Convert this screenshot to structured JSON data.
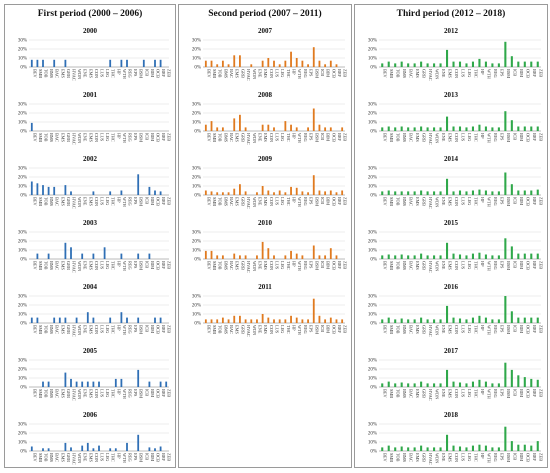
{
  "labels": [
    "BEV",
    "SMB",
    "TOB",
    "BMS",
    "BAC",
    "EMS",
    "GRB",
    "HVAC",
    "WDN",
    "ENE",
    "EMS",
    "CON",
    "LUS",
    "LEG",
    "THC",
    "HP",
    "WTH",
    "REG",
    "EPS",
    "BSM",
    "ICB",
    "BIM",
    "OCB",
    "BRF",
    "ZEB"
  ],
  "colors": {
    "first": "#2f6fb5",
    "second": "#e07a1f",
    "third": "#2fa84a"
  },
  "periods": [
    {
      "title": "First period (2000 – 2006)",
      "color_key": "first"
    },
    {
      "title": "Second period (2007 – 2011)",
      "color_key": "second"
    },
    {
      "title": "Third period (2012 – 2018)",
      "color_key": "third"
    }
  ],
  "chart_data": [
    {
      "type": "bar",
      "title": "2000",
      "period": 1,
      "ylim": [
        0,
        30
      ],
      "yticks": [
        "30%",
        "20%",
        "10%",
        "0%"
      ],
      "values": [
        8,
        8,
        8,
        0,
        8,
        0,
        8,
        0,
        0,
        0,
        0,
        0,
        0,
        0,
        8,
        0,
        8,
        8,
        0,
        0,
        8,
        0,
        8,
        8,
        0
      ]
    },
    {
      "type": "bar",
      "title": "2001",
      "period": 1,
      "ylim": [
        0,
        30
      ],
      "yticks": [
        "30%",
        "20%",
        "10%",
        "0%"
      ],
      "values": [
        9,
        0,
        0,
        0,
        0,
        0,
        0,
        0,
        0,
        0,
        0,
        0,
        0,
        0,
        0,
        0,
        0,
        0,
        0,
        0,
        0,
        0,
        0,
        0,
        0
      ]
    },
    {
      "type": "bar",
      "title": "2002",
      "period": 1,
      "ylim": [
        0,
        30
      ],
      "yticks": [
        "30%",
        "20%",
        "10%",
        "0%"
      ],
      "values": [
        15,
        13,
        11,
        9,
        9,
        0,
        11,
        4,
        0,
        0,
        0,
        4,
        0,
        0,
        4,
        0,
        5,
        0,
        0,
        23,
        0,
        9,
        5,
        4,
        0
      ]
    },
    {
      "type": "bar",
      "title": "2003",
      "period": 1,
      "ylim": [
        0,
        30
      ],
      "yticks": [
        "30%",
        "20%",
        "10%",
        "0%"
      ],
      "values": [
        0,
        6,
        0,
        6,
        0,
        0,
        18,
        13,
        0,
        6,
        0,
        6,
        0,
        13,
        0,
        0,
        6,
        0,
        0,
        6,
        0,
        6,
        0,
        0,
        0
      ]
    },
    {
      "type": "bar",
      "title": "2004",
      "period": 1,
      "ylim": [
        0,
        30
      ],
      "yticks": [
        "30%",
        "20%",
        "10%",
        "0%"
      ],
      "values": [
        6,
        6,
        0,
        0,
        6,
        6,
        6,
        0,
        6,
        0,
        12,
        6,
        0,
        0,
        6,
        0,
        12,
        6,
        0,
        6,
        0,
        0,
        6,
        6,
        0
      ]
    },
    {
      "type": "bar",
      "title": "2005",
      "period": 1,
      "ylim": [
        0,
        30
      ],
      "yticks": [
        "30%",
        "20%",
        "10%",
        "0%"
      ],
      "values": [
        0,
        0,
        6,
        6,
        0,
        0,
        16,
        9,
        6,
        6,
        6,
        6,
        6,
        0,
        0,
        9,
        9,
        0,
        0,
        19,
        0,
        6,
        0,
        6,
        6
      ]
    },
    {
      "type": "bar",
      "title": "2006",
      "period": 1,
      "ylim": [
        0,
        30
      ],
      "yticks": [
        "30%",
        "20%",
        "10%",
        "0%"
      ],
      "values": [
        5,
        0,
        3,
        3,
        0,
        0,
        9,
        4,
        0,
        6,
        9,
        3,
        6,
        0,
        3,
        3,
        0,
        9,
        0,
        18,
        0,
        4,
        3,
        5,
        0
      ]
    },
    {
      "type": "bar",
      "title": "2007",
      "period": 2,
      "ylim": [
        0,
        30
      ],
      "yticks": [
        "30%",
        "20%",
        "10%",
        "0%"
      ],
      "values": [
        7,
        7,
        3,
        7,
        3,
        13,
        13,
        0,
        3,
        0,
        7,
        10,
        7,
        3,
        7,
        17,
        10,
        7,
        3,
        22,
        7,
        3,
        7,
        3,
        0
      ]
    },
    {
      "type": "bar",
      "title": "2008",
      "period": 2,
      "ylim": [
        0,
        30
      ],
      "yticks": [
        "30%",
        "20%",
        "10%",
        "0%"
      ],
      "values": [
        7,
        11,
        4,
        4,
        0,
        14,
        18,
        4,
        0,
        0,
        7,
        7,
        4,
        0,
        11,
        7,
        4,
        0,
        4,
        25,
        7,
        4,
        4,
        0,
        4
      ]
    },
    {
      "type": "bar",
      "title": "2009",
      "period": 2,
      "ylim": [
        0,
        30
      ],
      "yticks": [
        "30%",
        "20%",
        "10%",
        "0%"
      ],
      "values": [
        5,
        4,
        3,
        3,
        3,
        7,
        12,
        4,
        0,
        3,
        10,
        5,
        3,
        5,
        3,
        9,
        8,
        4,
        3,
        22,
        5,
        4,
        5,
        3,
        5
      ]
    },
    {
      "type": "bar",
      "title": "2010",
      "period": 2,
      "ylim": [
        0,
        30
      ],
      "yticks": [
        "30%",
        "20%",
        "10%",
        "0%"
      ],
      "values": [
        9,
        9,
        4,
        4,
        0,
        6,
        4,
        4,
        0,
        4,
        19,
        12,
        4,
        0,
        4,
        9,
        6,
        4,
        0,
        15,
        4,
        4,
        12,
        4,
        0
      ]
    },
    {
      "type": "bar",
      "title": "2011",
      "period": 2,
      "ylim": [
        0,
        30
      ],
      "yticks": [
        "30%",
        "20%",
        "10%",
        "0%"
      ],
      "values": [
        4,
        4,
        4,
        6,
        4,
        8,
        8,
        4,
        4,
        4,
        10,
        6,
        4,
        4,
        4,
        8,
        6,
        4,
        4,
        27,
        8,
        4,
        6,
        4,
        4
      ]
    },
    {
      "type": "bar",
      "title": "2012",
      "period": 3,
      "ylim": [
        0,
        30
      ],
      "yticks": [
        "30%",
        "20%",
        "10%",
        "0%"
      ],
      "values": [
        4,
        6,
        4,
        6,
        4,
        4,
        6,
        4,
        4,
        4,
        19,
        6,
        6,
        4,
        6,
        9,
        6,
        4,
        4,
        28,
        12,
        6,
        6,
        6,
        6
      ]
    },
    {
      "type": "bar",
      "title": "2013",
      "period": 3,
      "ylim": [
        0,
        30
      ],
      "yticks": [
        "30%",
        "20%",
        "10%",
        "0%"
      ],
      "values": [
        4,
        5,
        4,
        5,
        4,
        4,
        5,
        4,
        4,
        4,
        16,
        5,
        5,
        4,
        5,
        7,
        5,
        4,
        4,
        22,
        12,
        5,
        5,
        5,
        5
      ]
    },
    {
      "type": "bar",
      "title": "2014",
      "period": 3,
      "ylim": [
        0,
        30
      ],
      "yticks": [
        "30%",
        "20%",
        "10%",
        "0%"
      ],
      "values": [
        4,
        5,
        4,
        4,
        4,
        4,
        5,
        4,
        4,
        4,
        18,
        4,
        5,
        4,
        5,
        6,
        5,
        4,
        4,
        25,
        12,
        5,
        5,
        5,
        6
      ]
    },
    {
      "type": "bar",
      "title": "2015",
      "period": 3,
      "ylim": [
        0,
        30
      ],
      "yticks": [
        "30%",
        "20%",
        "10%",
        "0%"
      ],
      "values": [
        4,
        5,
        4,
        5,
        4,
        4,
        6,
        4,
        4,
        4,
        18,
        6,
        5,
        4,
        6,
        7,
        5,
        4,
        4,
        23,
        14,
        6,
        6,
        6,
        6
      ]
    },
    {
      "type": "bar",
      "title": "2016",
      "period": 3,
      "ylim": [
        0,
        30
      ],
      "yticks": [
        "30%",
        "20%",
        "10%",
        "0%"
      ],
      "values": [
        4,
        6,
        4,
        5,
        4,
        4,
        6,
        4,
        4,
        4,
        19,
        6,
        5,
        4,
        6,
        8,
        6,
        4,
        4,
        30,
        13,
        6,
        6,
        6,
        6
      ]
    },
    {
      "type": "bar",
      "title": "2017",
      "period": 3,
      "ylim": [
        0,
        30
      ],
      "yticks": [
        "30%",
        "20%",
        "10%",
        "0%"
      ],
      "values": [
        4,
        6,
        4,
        5,
        4,
        4,
        6,
        4,
        4,
        4,
        19,
        6,
        5,
        4,
        6,
        8,
        6,
        4,
        4,
        27,
        19,
        13,
        11,
        9,
        8
      ]
    },
    {
      "type": "bar",
      "title": "2018",
      "period": 3,
      "ylim": [
        0,
        30
      ],
      "yticks": [
        "30%",
        "20%",
        "10%",
        "0%"
      ],
      "values": [
        4,
        6,
        4,
        5,
        4,
        4,
        6,
        4,
        4,
        4,
        18,
        6,
        5,
        4,
        6,
        7,
        6,
        4,
        4,
        27,
        11,
        7,
        7,
        6,
        11
      ]
    }
  ]
}
